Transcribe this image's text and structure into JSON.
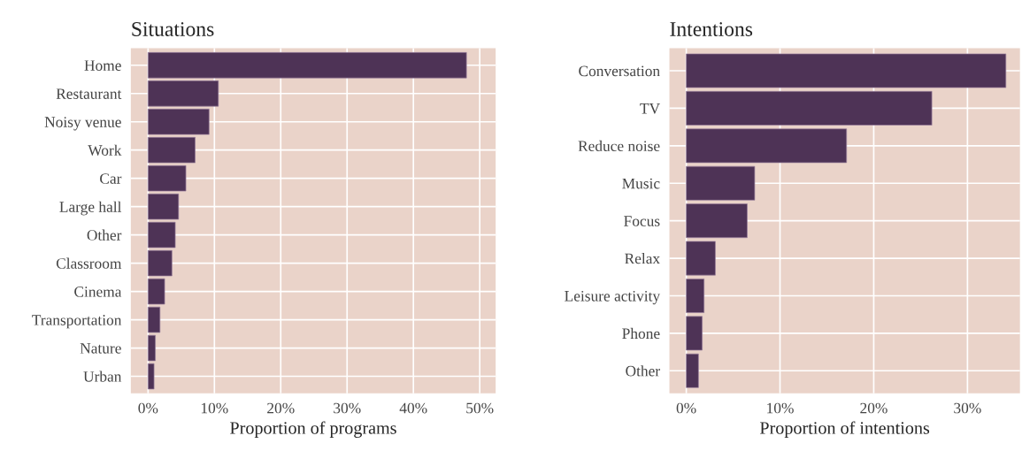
{
  "chart_data": [
    {
      "type": "bar",
      "orientation": "horizontal",
      "title": "Situations",
      "xlabel": "Proportion of programs",
      "categories": [
        "Home",
        "Restaurant",
        "Noisy venue",
        "Work",
        "Car",
        "Large hall",
        "Other",
        "Classroom",
        "Cinema",
        "Transportation",
        "Nature",
        "Urban"
      ],
      "values": [
        48.0,
        10.6,
        9.2,
        7.1,
        5.7,
        4.6,
        4.1,
        3.6,
        2.5,
        1.8,
        1.1,
        0.9
      ],
      "color": "#4e3356",
      "xlim": [
        -2.6,
        52.4
      ],
      "xticks": [
        {
          "value": 0,
          "label": "0%"
        },
        {
          "value": 10,
          "label": "10%"
        },
        {
          "value": 20,
          "label": "20%"
        },
        {
          "value": 30,
          "label": "30%"
        },
        {
          "value": 40,
          "label": "40%"
        },
        {
          "value": 50,
          "label": "50%"
        }
      ],
      "grid": true
    },
    {
      "type": "bar",
      "orientation": "horizontal",
      "title": "Intentions",
      "xlabel": "Proportion of intentions",
      "categories": [
        "Conversation",
        "TV",
        "Reduce noise",
        "Music",
        "Focus",
        "Relax",
        "Leisure activity",
        "Phone",
        "Other"
      ],
      "values": [
        34.1,
        26.2,
        17.1,
        7.3,
        6.5,
        3.1,
        1.9,
        1.7,
        1.3
      ],
      "color": "#4e3356",
      "xlim": [
        -1.8,
        35.6
      ],
      "xticks": [
        {
          "value": 0,
          "label": "0%"
        },
        {
          "value": 10,
          "label": "10%"
        },
        {
          "value": 20,
          "label": "20%"
        },
        {
          "value": 30,
          "label": "30%"
        }
      ],
      "grid": true
    }
  ]
}
